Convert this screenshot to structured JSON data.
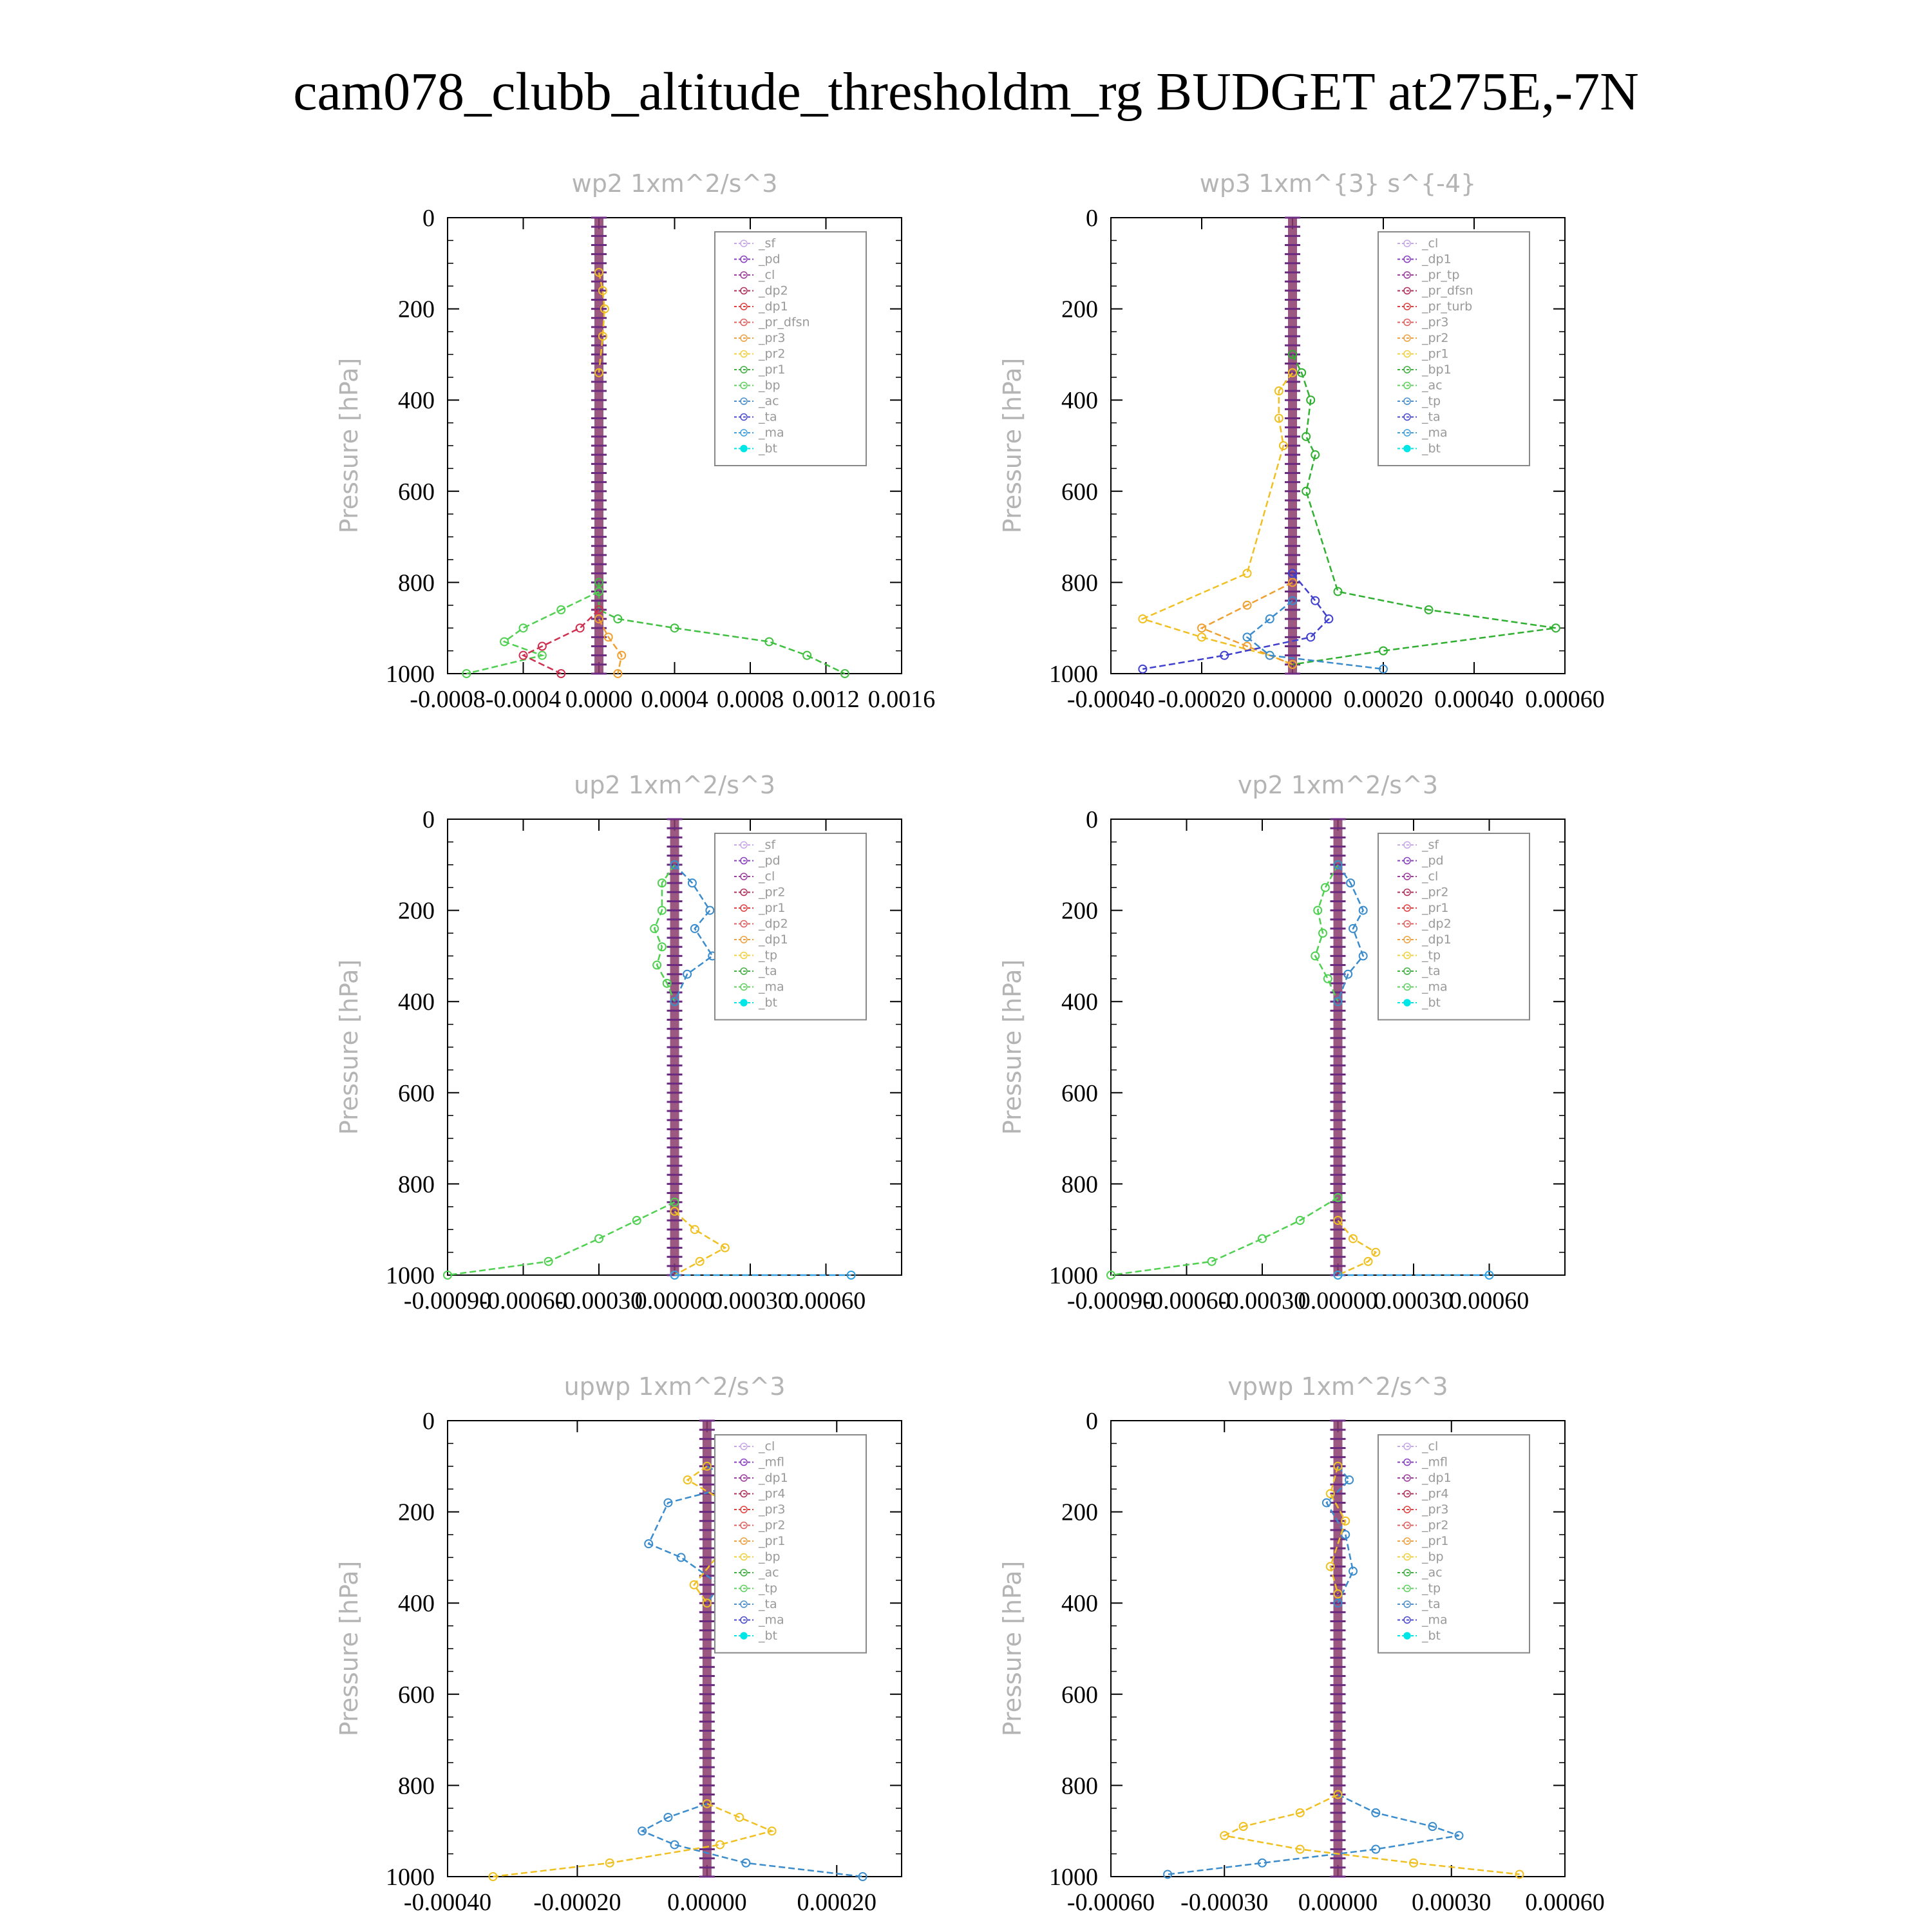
{
  "title": "cam078_clubb_altitude_thresholdm_rg  BUDGET at275E,-7N",
  "chart_data": [
    {
      "type": "line",
      "title": "wp2   1xm^2/s^3",
      "ylabel": "Pressure [hPa]",
      "ylim": [
        1000,
        0
      ],
      "yticks": [
        "0",
        "200",
        "400",
        "600",
        "800",
        "1000"
      ],
      "xlim": [
        -0.0008,
        0.0016
      ],
      "xticks": [
        "-0.0008",
        "-0.0004",
        "0.0000",
        "0.0004",
        "0.0008",
        "0.0012",
        "0.0016"
      ],
      "legend": [
        "_sf",
        "_pd",
        "_cl",
        "_dp2",
        "_dp1",
        "_pr_dfsn",
        "_pr3",
        "_pr2",
        "_pr1",
        "_bp",
        "_ac",
        "_ta",
        "_ma",
        "_bt"
      ],
      "series": [
        {
          "name": "_bp",
          "x": [
            0,
            0.0,
            0.0001,
            0.0004,
            0.0009,
            0.0011,
            0.0013
          ],
          "y": [
            800,
            860,
            880,
            900,
            930,
            960,
            1000
          ]
        },
        {
          "name": "_dp1",
          "x": [
            0,
            -0.0002,
            -0.0004,
            -0.0005,
            -0.0003,
            -0.0007
          ],
          "y": [
            820,
            860,
            900,
            930,
            960,
            1000
          ]
        },
        {
          "name": "_dp2",
          "x": [
            0,
            -0.0001,
            -0.0003,
            -0.0004,
            -0.0002
          ],
          "y": [
            860,
            900,
            940,
            960,
            1000
          ]
        },
        {
          "name": "_pr2",
          "x": [
            0,
            5e-05,
            0.00012,
            0.0001
          ],
          "y": [
            880,
            920,
            960,
            1000
          ]
        },
        {
          "name": "_pr1",
          "x": [
            0,
            2e-05,
            3e-05,
            2e-05,
            0
          ],
          "y": [
            120,
            160,
            200,
            260,
            340
          ]
        }
      ]
    },
    {
      "type": "line",
      "title": "wp3   1xm^{3} s^{-4}",
      "ylabel": "Pressure [hPa]",
      "ylim": [
        1000,
        0
      ],
      "yticks": [
        "0",
        "200",
        "400",
        "600",
        "800",
        "1000"
      ],
      "xlim": [
        -0.0004,
        0.0006
      ],
      "xticks": [
        "-0.00040",
        "-0.00020",
        "0.00000",
        "0.00020",
        "0.00040",
        "0.00060"
      ],
      "legend": [
        "_cl",
        "_dp1",
        "_pr_tp",
        "_pr_dfsn",
        "_pr_turb",
        "_pr3",
        "_pr2",
        "_pr1",
        "_bp1",
        "_ac",
        "_tp",
        "_ta",
        "_ma",
        "_bt"
      ],
      "series": [
        {
          "name": "_bp1",
          "x": [
            0,
            2e-05,
            4e-05,
            3e-05,
            5e-05,
            3e-05,
            0.0001,
            0.0003,
            0.00058,
            0.0002,
            0
          ],
          "y": [
            300,
            340,
            400,
            480,
            520,
            600,
            820,
            860,
            900,
            950,
            980
          ]
        },
        {
          "name": "_pr1",
          "x": [
            0,
            -3e-05,
            -3e-05,
            -2e-05,
            -0.0001,
            -0.00033,
            -0.0002,
            -5e-05,
            0
          ],
          "y": [
            340,
            380,
            440,
            500,
            780,
            880,
            920,
            960,
            980
          ]
        },
        {
          "name": "_pr2",
          "x": [
            0,
            -0.0001,
            -0.0002,
            -0.0001,
            0
          ],
          "y": [
            800,
            850,
            900,
            940,
            980
          ]
        },
        {
          "name": "_ta",
          "x": [
            0,
            5e-05,
            8e-05,
            4e-05,
            -0.00015,
            -0.00033
          ],
          "y": [
            780,
            840,
            880,
            920,
            960,
            990
          ]
        },
        {
          "name": "_tp",
          "x": [
            0,
            -5e-05,
            -0.0001,
            -5e-05,
            0.0002
          ],
          "y": [
            840,
            880,
            920,
            960,
            990
          ]
        }
      ]
    },
    {
      "type": "line",
      "title": "up2   1xm^2/s^3",
      "ylabel": "Pressure [hPa]",
      "ylim": [
        1000,
        0
      ],
      "yticks": [
        "0",
        "200",
        "400",
        "600",
        "800",
        "1000"
      ],
      "xlim": [
        -0.0009,
        0.0009
      ],
      "xticks": [
        "-0.00090",
        "-0.00060",
        "-0.00030",
        "0.00000",
        "0.00030",
        "0.00060"
      ],
      "legend": [
        "_sf",
        "_pd",
        "_cl",
        "_pr2",
        "_pr1",
        "_dp2",
        "_dp1",
        "_tp",
        "_ta",
        "_ma",
        "_bt"
      ],
      "series": [
        {
          "name": "_dp1",
          "x": [
            0,
            -5e-05,
            -5e-05,
            -8e-05,
            -5e-05,
            -7e-05,
            -3e-05,
            0
          ],
          "y": [
            100,
            140,
            200,
            240,
            280,
            320,
            360,
            400
          ]
        },
        {
          "name": "_tp",
          "x": [
            0,
            7e-05,
            0.00014,
            8e-05,
            0.00015,
            5e-05,
            0
          ],
          "y": [
            100,
            140,
            200,
            240,
            300,
            340,
            400
          ]
        },
        {
          "name": "_dp1",
          "x": [
            0,
            -0.00015,
            -0.0003,
            -0.0005,
            -0.0009
          ],
          "y": [
            840,
            880,
            920,
            970,
            1000
          ]
        },
        {
          "name": "_pr1",
          "x": [
            0,
            8e-05,
            0.0002,
            0.0001,
            0
          ],
          "y": [
            860,
            900,
            940,
            970,
            1000
          ]
        },
        {
          "name": "_ma",
          "x": [
            0,
            0.0007
          ],
          "y": [
            1000,
            1000
          ]
        }
      ]
    },
    {
      "type": "line",
      "title": "vp2   1xm^2/s^3",
      "ylabel": "Pressure [hPa]",
      "ylim": [
        1000,
        0
      ],
      "yticks": [
        "0",
        "200",
        "400",
        "600",
        "800",
        "1000"
      ],
      "xlim": [
        -0.0009,
        0.0009
      ],
      "xticks": [
        "-0.00090",
        "-0.00060",
        "-0.00030",
        "0.00000",
        "0.00030",
        "0.00060"
      ],
      "legend": [
        "_sf",
        "_pd",
        "_cl",
        "_pr2",
        "_pr1",
        "_dp2",
        "_dp1",
        "_tp",
        "_ta",
        "_ma",
        "_bt"
      ],
      "series": [
        {
          "name": "_dp1",
          "x": [
            0,
            -5e-05,
            -8e-05,
            -6e-05,
            -9e-05,
            -4e-05,
            0
          ],
          "y": [
            100,
            150,
            200,
            250,
            300,
            350,
            400
          ]
        },
        {
          "name": "_tp",
          "x": [
            0,
            5e-05,
            0.0001,
            6e-05,
            0.0001,
            4e-05,
            0
          ],
          "y": [
            100,
            140,
            200,
            240,
            300,
            340,
            400
          ]
        },
        {
          "name": "_dp1",
          "x": [
            0,
            -0.00015,
            -0.0003,
            -0.0005,
            -0.0009
          ],
          "y": [
            830,
            880,
            920,
            970,
            1000
          ]
        },
        {
          "name": "_pr1",
          "x": [
            0,
            6e-05,
            0.00015,
            0.00012,
            0
          ],
          "y": [
            880,
            920,
            950,
            970,
            1000
          ]
        },
        {
          "name": "_ma",
          "x": [
            0,
            0.0006
          ],
          "y": [
            1000,
            1000
          ]
        }
      ]
    },
    {
      "type": "line",
      "title": "upwp   1xm^2/s^3",
      "ylabel": "Pressure [hPa]",
      "ylim": [
        1000,
        0
      ],
      "yticks": [
        "0",
        "200",
        "400",
        "600",
        "800",
        "1000"
      ],
      "xlim": [
        -0.0004,
        0.0003
      ],
      "xticks": [
        "-0.00040",
        "-0.00020",
        "0.00000",
        "0.00020"
      ],
      "legend": [
        "_cl",
        "_mfl",
        "_dp1",
        "_pr4",
        "_pr3",
        "_pr2",
        "_pr1",
        "_bp",
        "_ac",
        "_tp",
        "_ta",
        "_ma",
        "_bt"
      ],
      "series": [
        {
          "name": "_tp",
          "x": [
            0,
            5e-05,
            -6e-05,
            -9e-05,
            -4e-05,
            2e-05,
            0
          ],
          "y": [
            100,
            140,
            180,
            270,
            300,
            360,
            400
          ]
        },
        {
          "name": "_pr1",
          "x": [
            0,
            -3e-05,
            3e-05,
            6e-05,
            2e-05,
            -2e-05,
            0
          ],
          "y": [
            100,
            130,
            180,
            250,
            290,
            360,
            400
          ]
        },
        {
          "name": "_tp",
          "x": [
            0,
            -6e-05,
            -0.0001,
            -5e-05,
            6e-05,
            0.00024
          ],
          "y": [
            840,
            870,
            900,
            930,
            970,
            1000
          ]
        },
        {
          "name": "_pr1",
          "x": [
            0,
            5e-05,
            0.0001,
            2e-05,
            -0.00015,
            -0.00033
          ],
          "y": [
            840,
            870,
            900,
            930,
            970,
            1000
          ]
        }
      ]
    },
    {
      "type": "line",
      "title": "vpwp   1xm^2/s^3",
      "ylabel": "Pressure [hPa]",
      "ylim": [
        1000,
        0
      ],
      "yticks": [
        "0",
        "200",
        "400",
        "600",
        "800",
        "1000"
      ],
      "xlim": [
        -0.0006,
        0.0006
      ],
      "xticks": [
        "-0.00060",
        "-0.00030",
        "0.00000",
        "0.00030",
        "0.00060"
      ],
      "legend": [
        "_cl",
        "_mfl",
        "_dp1",
        "_pr4",
        "_pr3",
        "_pr2",
        "_pr1",
        "_bp",
        "_ac",
        "_tp",
        "_ta",
        "_ma",
        "_bt"
      ],
      "series": [
        {
          "name": "_tp",
          "x": [
            0,
            3e-05,
            -3e-05,
            2e-05,
            4e-05,
            0
          ],
          "y": [
            100,
            130,
            180,
            250,
            330,
            400
          ]
        },
        {
          "name": "_pr1",
          "x": [
            0,
            -2e-05,
            2e-05,
            -2e-05,
            0
          ],
          "y": [
            100,
            160,
            220,
            320,
            380
          ]
        },
        {
          "name": "_tp",
          "x": [
            0,
            0.0001,
            0.00025,
            0.00032,
            0.0001,
            -0.0002,
            -0.00045
          ],
          "y": [
            820,
            860,
            890,
            910,
            940,
            970,
            995
          ]
        },
        {
          "name": "_pr1",
          "x": [
            0,
            -0.0001,
            -0.00025,
            -0.0003,
            -0.0001,
            0.0002,
            0.00048
          ],
          "y": [
            820,
            860,
            890,
            910,
            940,
            970,
            995
          ]
        }
      ]
    }
  ]
}
